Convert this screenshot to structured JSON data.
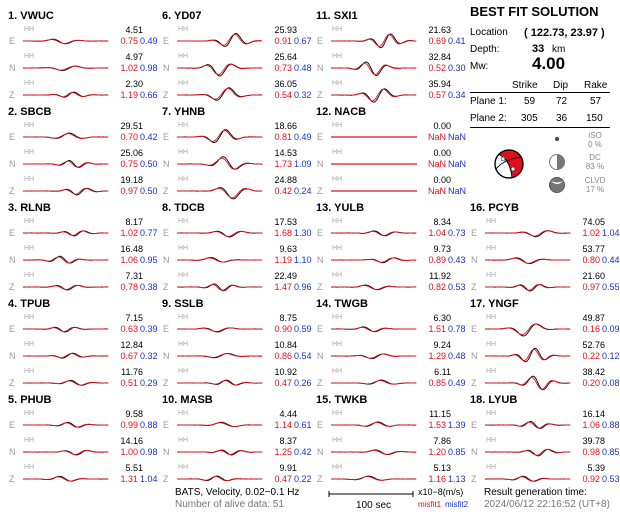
{
  "channel_label": "HH",
  "stations": [
    {
      "n": "1.",
      "name": "VWUC",
      "rows": [
        {
          "c": "E",
          "amp": "4.51",
          "m1": "0.75",
          "m2": "0.49"
        },
        {
          "c": "N",
          "amp": "4.97",
          "m1": "1.02",
          "m2": "0.98"
        },
        {
          "c": "Z",
          "amp": "2.30",
          "m1": "1.19",
          "m2": "0.66"
        }
      ]
    },
    {
      "n": "2.",
      "name": "SBCB",
      "rows": [
        {
          "c": "E",
          "amp": "29.51",
          "m1": "0.70",
          "m2": "0.42"
        },
        {
          "c": "N",
          "amp": "25.06",
          "m1": "0.75",
          "m2": "0.50"
        },
        {
          "c": "Z",
          "amp": "19.18",
          "m1": "0.97",
          "m2": "0.50"
        }
      ]
    },
    {
      "n": "3.",
      "name": "RLNB",
      "rows": [
        {
          "c": "E",
          "amp": "8.17",
          "m1": "1.02",
          "m2": "0.77"
        },
        {
          "c": "N",
          "amp": "16.48",
          "m1": "1.06",
          "m2": "0.95"
        },
        {
          "c": "Z",
          "amp": "7.31",
          "m1": "0.78",
          "m2": "0.38"
        }
      ]
    },
    {
      "n": "4.",
      "name": "TPUB",
      "rows": [
        {
          "c": "E",
          "amp": "7.15",
          "m1": "0.63",
          "m2": "0.39"
        },
        {
          "c": "N",
          "amp": "12.84",
          "m1": "0.67",
          "m2": "0.32"
        },
        {
          "c": "Z",
          "amp": "11.76",
          "m1": "0.51",
          "m2": "0.29"
        }
      ]
    },
    {
      "n": "5.",
      "name": "PHUB",
      "rows": [
        {
          "c": "E",
          "amp": "9.58",
          "m1": "0.99",
          "m2": "0.88"
        },
        {
          "c": "N",
          "amp": "14.16",
          "m1": "1.00",
          "m2": "0.98"
        },
        {
          "c": "Z",
          "amp": "5.51",
          "m1": "1.31",
          "m2": "1.04"
        }
      ]
    },
    {
      "n": "6.",
      "name": "YD07",
      "rows": [
        {
          "c": "E",
          "amp": "25.93",
          "m1": "0.91",
          "m2": "0.67"
        },
        {
          "c": "N",
          "amp": "25.64",
          "m1": "0.73",
          "m2": "0.48"
        },
        {
          "c": "Z",
          "amp": "36.05",
          "m1": "0.54",
          "m2": "0.32"
        }
      ]
    },
    {
      "n": "7.",
      "name": "YHNB",
      "rows": [
        {
          "c": "E",
          "amp": "18.66",
          "m1": "0.81",
          "m2": "0.49"
        },
        {
          "c": "N",
          "amp": "14.53",
          "m1": "1.73",
          "m2": "1.09"
        },
        {
          "c": "Z",
          "amp": "24.88",
          "m1": "0.42",
          "m2": "0.24"
        }
      ]
    },
    {
      "n": "8.",
      "name": "TDCB",
      "rows": [
        {
          "c": "E",
          "amp": "17.53",
          "m1": "1.68",
          "m2": "1.30"
        },
        {
          "c": "N",
          "amp": "9.63",
          "m1": "1.19",
          "m2": "1.10"
        },
        {
          "c": "Z",
          "amp": "22.49",
          "m1": "1.47",
          "m2": "0.96"
        }
      ]
    },
    {
      "n": "9.",
      "name": "SSLB",
      "rows": [
        {
          "c": "E",
          "amp": "8.75",
          "m1": "0.90",
          "m2": "0.59"
        },
        {
          "c": "N",
          "amp": "10.84",
          "m1": "0.86",
          "m2": "0.54"
        },
        {
          "c": "Z",
          "amp": "10.92",
          "m1": "0.47",
          "m2": "0.26"
        }
      ]
    },
    {
      "n": "10.",
      "name": "MASB",
      "rows": [
        {
          "c": "E",
          "amp": "4.44",
          "m1": "1.14",
          "m2": "0.61"
        },
        {
          "c": "N",
          "amp": "8.37",
          "m1": "1.25",
          "m2": "0.42"
        },
        {
          "c": "Z",
          "amp": "9.91",
          "m1": "0.47",
          "m2": "0.22"
        }
      ]
    },
    {
      "n": "11.",
      "name": "SXI1",
      "rows": [
        {
          "c": "E",
          "amp": "21.63",
          "m1": "0.69",
          "m2": "0.41"
        },
        {
          "c": "N",
          "amp": "32.84",
          "m1": "0.52",
          "m2": "0.30"
        },
        {
          "c": "Z",
          "amp": "35.94",
          "m1": "0.57",
          "m2": "0.34"
        }
      ]
    },
    {
      "n": "12.",
      "name": "NACB",
      "rows": [
        {
          "c": "E",
          "amp": "0.00",
          "m1": "NaN",
          "m2": "NaN"
        },
        {
          "c": "N",
          "amp": "0.00",
          "m1": "NaN",
          "m2": "NaN"
        },
        {
          "c": "Z",
          "amp": "0.00",
          "m1": "NaN",
          "m2": "NaN"
        }
      ]
    },
    {
      "n": "13.",
      "name": "YULB",
      "rows": [
        {
          "c": "E",
          "amp": "8.34",
          "m1": "1.04",
          "m2": "0.73"
        },
        {
          "c": "N",
          "amp": "9.73",
          "m1": "0.89",
          "m2": "0.43"
        },
        {
          "c": "Z",
          "amp": "11.92",
          "m1": "0.82",
          "m2": "0.53"
        }
      ]
    },
    {
      "n": "14.",
      "name": "TWGB",
      "rows": [
        {
          "c": "E",
          "amp": "6.30",
          "m1": "1.51",
          "m2": "0.78"
        },
        {
          "c": "N",
          "amp": "9.24",
          "m1": "1.29",
          "m2": "0.48"
        },
        {
          "c": "Z",
          "amp": "6.11",
          "m1": "0.85",
          "m2": "0.49"
        }
      ]
    },
    {
      "n": "15.",
      "name": "TWKB",
      "rows": [
        {
          "c": "E",
          "amp": "11.15",
          "m1": "1.53",
          "m2": "1.39"
        },
        {
          "c": "N",
          "amp": "7.86",
          "m1": "1.20",
          "m2": "0.85"
        },
        {
          "c": "Z",
          "amp": "5.13",
          "m1": "1.16",
          "m2": "1.13"
        }
      ]
    },
    {
      "n": "16.",
      "name": "PCYB",
      "rows": [
        {
          "c": "E",
          "amp": "74.05",
          "m1": "1.02",
          "m2": "1.04"
        },
        {
          "c": "N",
          "amp": "53.77",
          "m1": "0.80",
          "m2": "0.44"
        },
        {
          "c": "Z",
          "amp": "21.60",
          "m1": "0.97",
          "m2": "0.55"
        }
      ]
    },
    {
      "n": "17.",
      "name": "YNGF",
      "rows": [
        {
          "c": "E",
          "amp": "49.87",
          "m1": "0.16",
          "m2": "0.09"
        },
        {
          "c": "N",
          "amp": "52.76",
          "m1": "0.22",
          "m2": "0.12"
        },
        {
          "c": "Z",
          "amp": "38.42",
          "m1": "0.20",
          "m2": "0.08"
        }
      ]
    },
    {
      "n": "18.",
      "name": "LYUB",
      "rows": [
        {
          "c": "E",
          "amp": "16.14",
          "m1": "1.06",
          "m2": "0.88"
        },
        {
          "c": "N",
          "amp": "39.78",
          "m1": "0.98",
          "m2": "0.85"
        },
        {
          "c": "Z",
          "amp": "5.39",
          "m1": "0.92",
          "m2": "0.53"
        }
      ]
    }
  ],
  "best_fit": {
    "title": "BEST FIT SOLUTION",
    "location_label": "Location",
    "location_value": "( 122.73,  23.97 )",
    "depth_label": "Depth:",
    "depth_value": "33",
    "depth_unit": "km",
    "mw_label": "Mw:",
    "mw_value": "4.00",
    "col_strike": "Strike",
    "col_dip": "Dip",
    "col_rake": "Rake",
    "planes": [
      {
        "label": "Plane 1:",
        "strike": "59",
        "dip": "72",
        "rake": "57"
      },
      {
        "label": "Plane 2:",
        "strike": "305",
        "dip": "36",
        "rake": "150"
      }
    ],
    "iso_label": "ISO",
    "iso_pct": "0 %",
    "dc_label": "DC",
    "dc_pct": "83 %",
    "clvd_label": "CLVD",
    "clvd_pct": "17 %"
  },
  "footer": {
    "network_line": "BATS, Velocity, 0.02~0.1 Hz",
    "alive_line": "Number of alive data: 51",
    "scale_label": "100 sec",
    "unit_label": "x10−8(m/s)",
    "misfit1_label": "misfit1",
    "misfit2_label": "misfit2",
    "gen_label": "Result generation time:",
    "gen_time": "2024/06/12 22:16:52 (UT+8)"
  },
  "colors": {
    "observed": "#000000",
    "synthetic": "#e0101a",
    "misfit2": "#1633c8"
  }
}
